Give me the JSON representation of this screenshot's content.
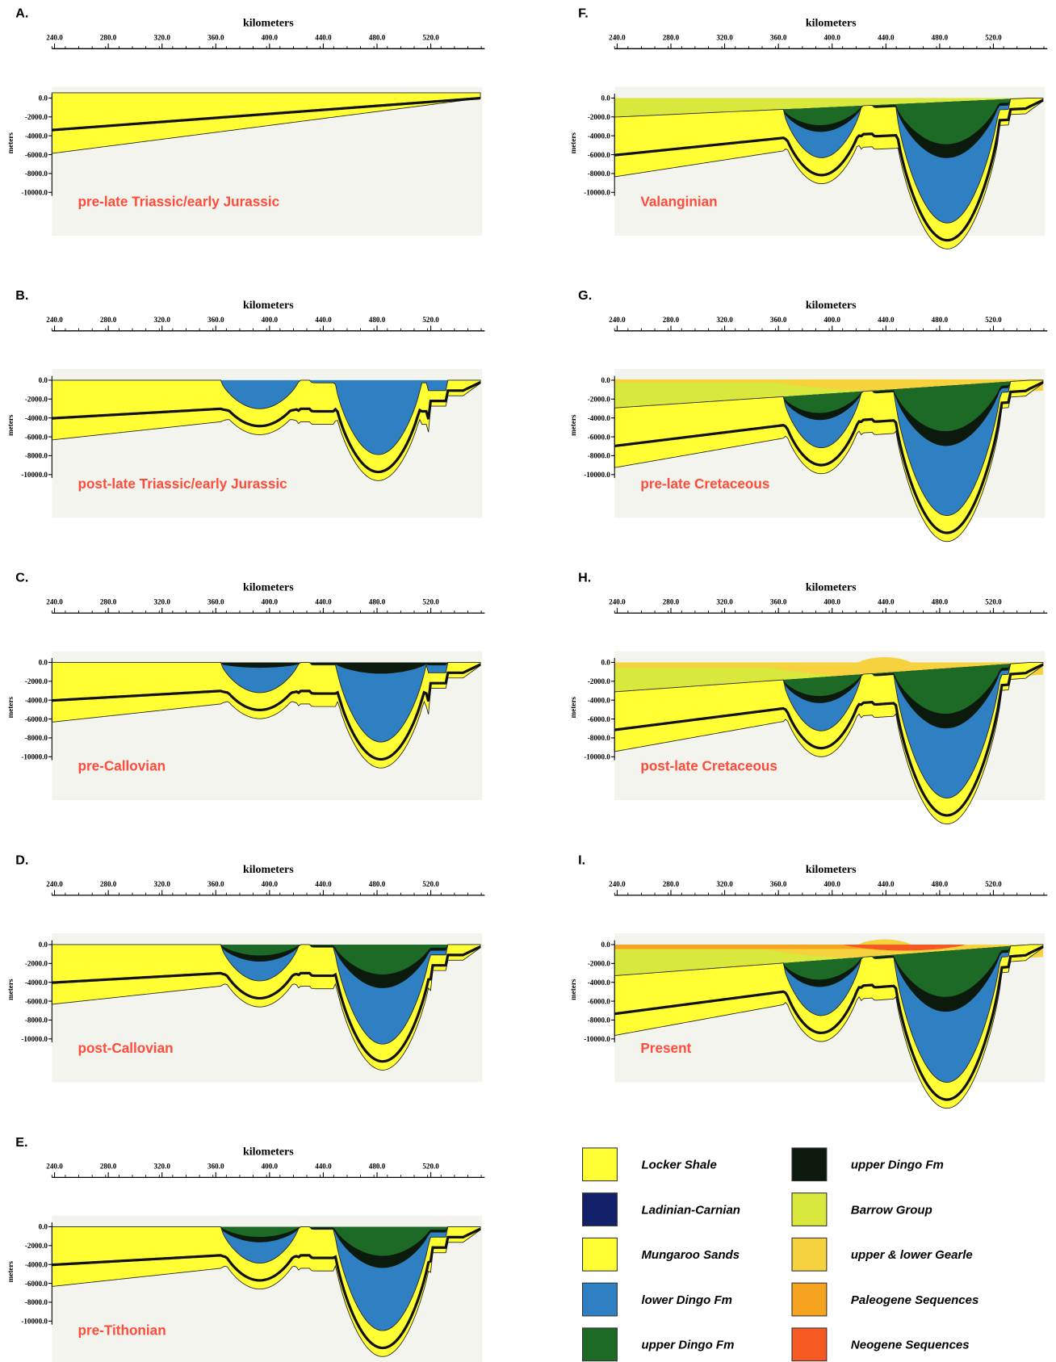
{
  "panels": [
    {
      "letter": "A.",
      "axis_title": "kilometers",
      "x_ticks": [
        "240.0",
        "280.0",
        "320.0",
        "360.0",
        "400.0",
        "440.0",
        "480.0",
        "520.0"
      ],
      "y_label": "meters",
      "y_ticks": [
        "0.0",
        "-2000.0",
        "-4000.0",
        "-6000.0",
        "-8000.0",
        "-10000.0"
      ],
      "stage": "pre-late Triassic/early Jurassic"
    },
    {
      "letter": "B.",
      "axis_title": "kilometers",
      "x_ticks": [
        "240.0",
        "280.0",
        "320.0",
        "360.0",
        "400.0",
        "440.0",
        "480.0",
        "520.0"
      ],
      "y_label": "meters",
      "y_ticks": [
        "0.0",
        "-2000.0",
        "-4000.0",
        "-6000.0",
        "-8000.0",
        "-10000.0"
      ],
      "stage": "post-late Triassic/early Jurassic"
    },
    {
      "letter": "C.",
      "axis_title": "kilometers",
      "x_ticks": [
        "240.0",
        "280.0",
        "320.0",
        "360.0",
        "400.0",
        "440.0",
        "480.0",
        "520.0"
      ],
      "y_label": "meters",
      "y_ticks": [
        "0.0",
        "-2000.0",
        "-4000.0",
        "-6000.0",
        "-8000.0",
        "-10000.0"
      ],
      "stage": "pre-Callovian"
    },
    {
      "letter": "D.",
      "axis_title": "kilometers",
      "x_ticks": [
        "240.0",
        "280.0",
        "320.0",
        "360.0",
        "400.0",
        "440.0",
        "480.0",
        "520.0"
      ],
      "y_label": "meters",
      "y_ticks": [
        "0.0",
        "-2000.0",
        "-4000.0",
        "-6000.0",
        "-8000.0",
        "-10000.0"
      ],
      "stage": "post-Callovian"
    },
    {
      "letter": "E.",
      "axis_title": "kilometers",
      "x_ticks": [
        "240.0",
        "280.0",
        "320.0",
        "360.0",
        "400.0",
        "440.0",
        "480.0",
        "520.0"
      ],
      "y_label": "meters",
      "y_ticks": [
        "0.0",
        "-2000.0",
        "-4000.0",
        "-6000.0",
        "-8000.0",
        "-10000.0"
      ],
      "stage": "pre-Tithonian"
    },
    {
      "letter": "F.",
      "axis_title": "kilometers",
      "x_ticks": [
        "240.0",
        "280.0",
        "320.0",
        "360.0",
        "400.0",
        "440.0",
        "480.0",
        "520.0"
      ],
      "y_label": "meters",
      "y_ticks": [
        "0.0",
        "-2000.0",
        "-4000.0",
        "-6000.0",
        "-8000.0",
        "-10000.0"
      ],
      "stage": "Valanginian"
    },
    {
      "letter": "G.",
      "axis_title": "kilometers",
      "x_ticks": [
        "240.0",
        "280.0",
        "320.0",
        "360.0",
        "400.0",
        "440.0",
        "480.0",
        "520.0"
      ],
      "y_label": "meters",
      "y_ticks": [
        "0.0",
        "-2000.0",
        "-4000.0",
        "-6000.0",
        "-8000.0",
        "-10000.0"
      ],
      "stage": "pre-late Cretaceous"
    },
    {
      "letter": "H.",
      "axis_title": "kilometers",
      "x_ticks": [
        "240.0",
        "280.0",
        "320.0",
        "360.0",
        "400.0",
        "440.0",
        "480.0",
        "520.0"
      ],
      "y_label": "meters",
      "y_ticks": [
        "0.0",
        "-2000.0",
        "-4000.0",
        "-6000.0",
        "-8000.0",
        "-10000.0"
      ],
      "stage": "post-late Cretaceous"
    },
    {
      "letter": "I.",
      "axis_title": "kilometers",
      "x_ticks": [
        "240.0",
        "280.0",
        "320.0",
        "360.0",
        "400.0",
        "440.0",
        "480.0",
        "520.0"
      ],
      "y_label": "meters",
      "y_ticks": [
        "0.0",
        "-2000.0",
        "-4000.0",
        "-6000.0",
        "-8000.0",
        "-10000.0"
      ],
      "stage": "Present"
    }
  ],
  "legend": {
    "items": [
      {
        "label": "Locker Shale",
        "color": "#ffff33"
      },
      {
        "label": "Ladinian-Carnian",
        "color": "#13206a"
      },
      {
        "label": "Mungaroo Sands",
        "color": "#ffff33"
      },
      {
        "label": "lower Dingo Fm",
        "color": "#2f80c3"
      },
      {
        "label": "upper Dingo Fm",
        "color": "#1c6a26"
      },
      {
        "label": "upper Dingo Fm",
        "color": "#0b1a0c"
      },
      {
        "label": "Barrow Group",
        "color": "#d9e83c"
      },
      {
        "label": "upper & lower Gearle",
        "color": "#f6d23e"
      },
      {
        "label": "Paleogene Sequences",
        "color": "#f6a320"
      },
      {
        "label": "Neogene Sequences",
        "color": "#f65a22"
      }
    ]
  }
}
